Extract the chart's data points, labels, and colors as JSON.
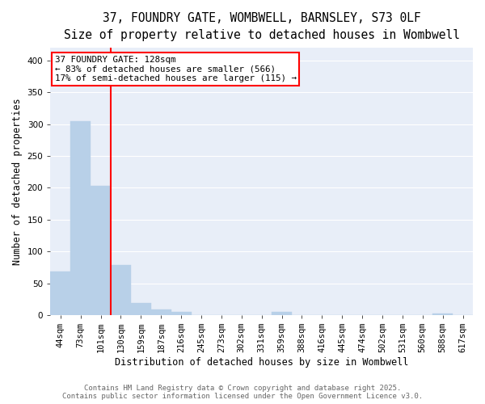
{
  "title_line1": "37, FOUNDRY GATE, WOMBWELL, BARNSLEY, S73 0LF",
  "title_line2": "Size of property relative to detached houses in Wombwell",
  "xlabel": "Distribution of detached houses by size in Wombwell",
  "ylabel": "Number of detached properties",
  "categories": [
    "44sqm",
    "73sqm",
    "101sqm",
    "130sqm",
    "159sqm",
    "187sqm",
    "216sqm",
    "245sqm",
    "273sqm",
    "302sqm",
    "331sqm",
    "359sqm",
    "388sqm",
    "416sqm",
    "445sqm",
    "474sqm",
    "502sqm",
    "531sqm",
    "560sqm",
    "588sqm",
    "617sqm"
  ],
  "values": [
    68,
    305,
    203,
    78,
    19,
    9,
    5,
    0,
    0,
    0,
    0,
    5,
    0,
    0,
    0,
    0,
    0,
    0,
    0,
    2,
    0
  ],
  "bar_color": "#b8d0e8",
  "bar_edgecolor": "#b8d0e8",
  "vline_color": "red",
  "vline_x_index": 2.5,
  "annotation_text_line1": "37 FOUNDRY GATE: 128sqm",
  "annotation_text_line2": "← 83% of detached houses are smaller (566)",
  "annotation_text_line3": "17% of semi-detached houses are larger (115) →",
  "ylim": [
    0,
    420
  ],
  "yticks": [
    0,
    50,
    100,
    150,
    200,
    250,
    300,
    350,
    400
  ],
  "footer_line1": "Contains HM Land Registry data © Crown copyright and database right 2025.",
  "footer_line2": "Contains public sector information licensed under the Open Government Licence v3.0.",
  "figure_bg_color": "#ffffff",
  "plot_bg_color": "#e8eef8",
  "grid_color": "#ffffff",
  "title_fontsize": 10.5,
  "subtitle_fontsize": 9.5,
  "tick_fontsize": 7.5,
  "label_fontsize": 8.5,
  "annotation_fontsize": 7.8,
  "footer_fontsize": 6.5
}
